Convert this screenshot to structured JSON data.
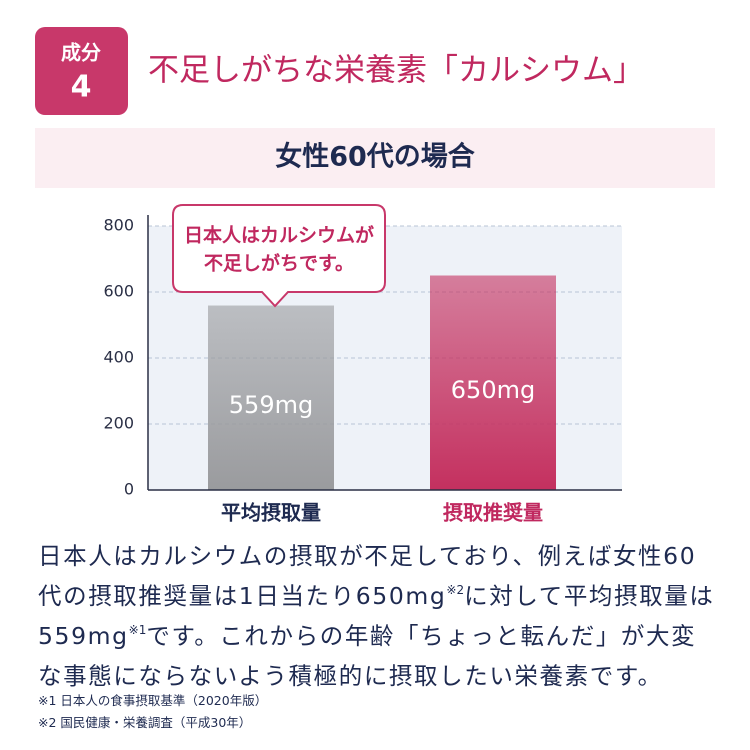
{
  "header": {
    "badge_label": "成分",
    "badge_number": "4",
    "title": "不足しがちな栄養素「カルシウム」",
    "subtitle": "女性60代の場合"
  },
  "chart_data": {
    "type": "bar",
    "categories": [
      "平均摂取量",
      "摂取推奨量"
    ],
    "values": [
      559,
      650
    ],
    "value_labels": [
      "559mg",
      "650mg"
    ],
    "colors": [
      "#9a9b9e",
      "#c4305f"
    ],
    "ylim": [
      0,
      800
    ],
    "yticks": [
      0,
      200,
      400,
      600,
      800
    ],
    "grid": true,
    "annotation": [
      "日本人はカルシウムが",
      "不足しがちです。"
    ]
  },
  "body": [
    "日本人はカルシウムの摂取が不足しており、例えば女性60代の摂取推奨量は1日当たり650mg",
    "※2",
    "に対して平均摂取量は559mg",
    "※1",
    "です。これからの年齢「ちょっと転んだ」が大変な事態にならないよう積極的に摂取したい栄養素です。"
  ],
  "footnotes": [
    "※1 日本人の食事摂取基準（2020年版）",
    "※2 国民健康・栄養調査（平成30年）"
  ]
}
